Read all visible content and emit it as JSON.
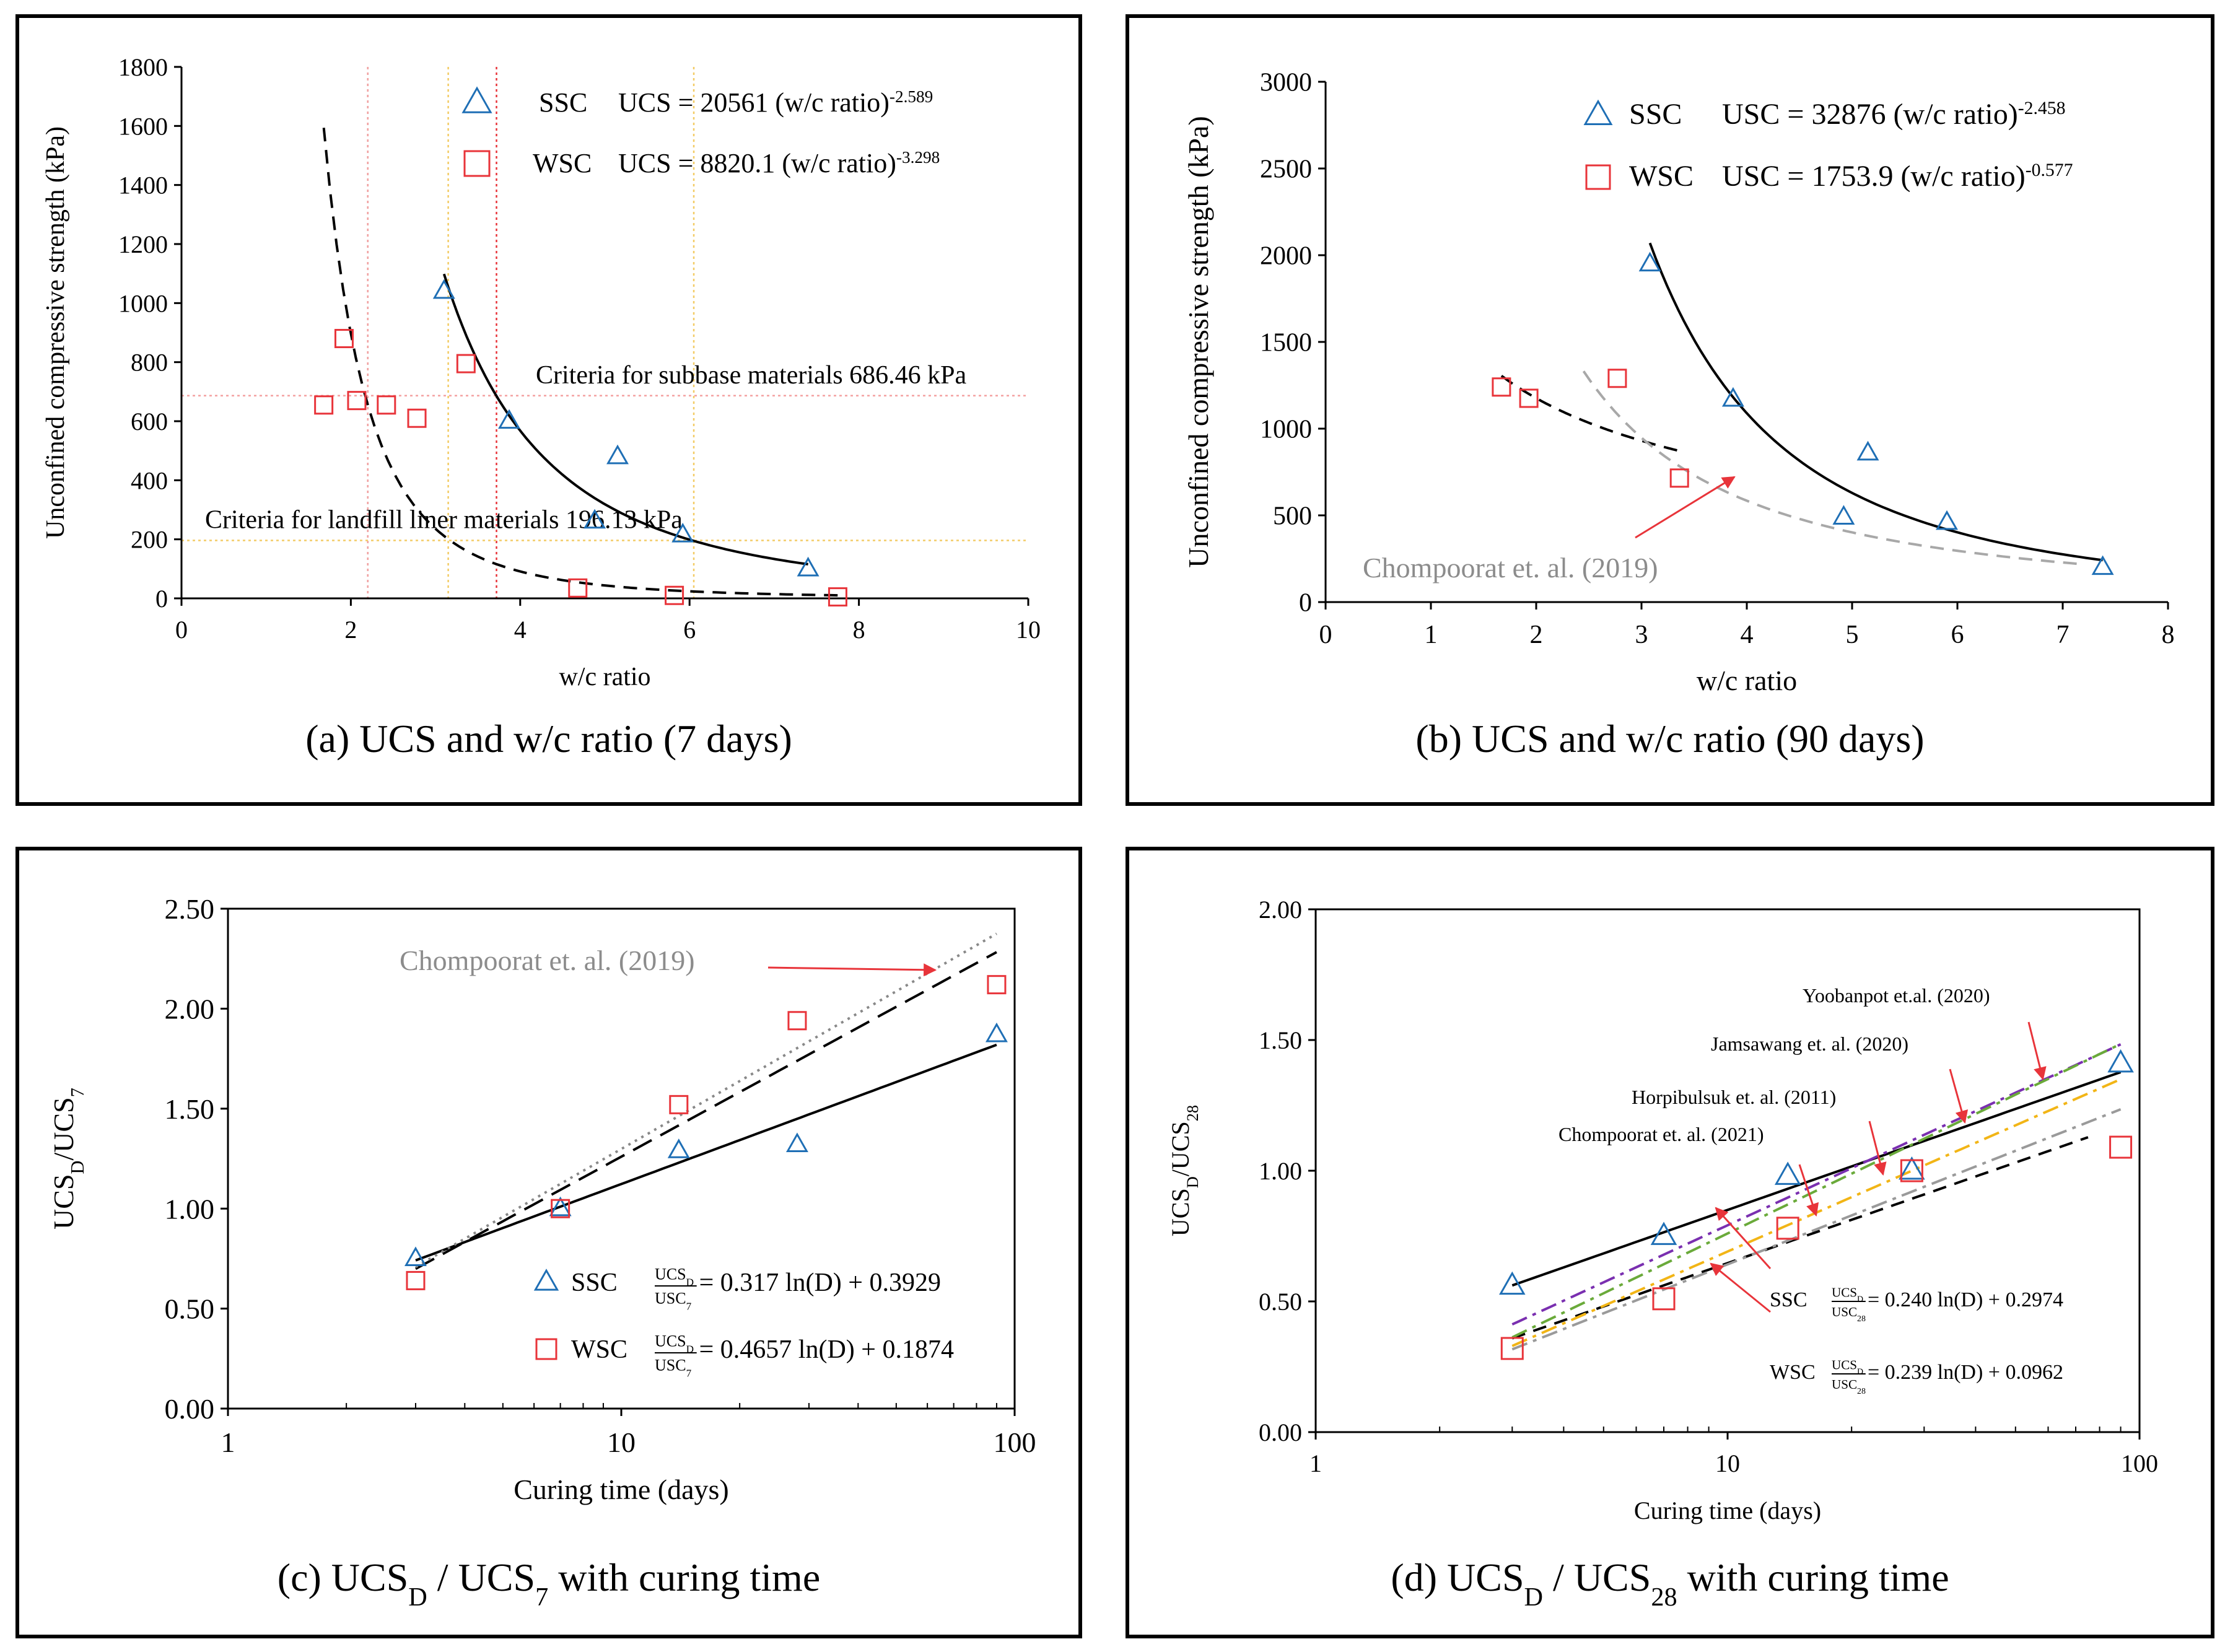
{
  "chart_data": [
    {
      "id": "a",
      "type": "scatter",
      "caption": {
        "pre": "(a) UCS and w/c ratio (7 days)"
      },
      "xlabel": "w/c ratio",
      "ylabel": "Unconfined compressive strength (kPa)",
      "xlim": [
        0,
        10
      ],
      "ylim": [
        0,
        1800
      ],
      "xticks": [
        0,
        2,
        4,
        6,
        8,
        10
      ],
      "yticks": [
        0,
        200,
        400,
        600,
        800,
        1000,
        1200,
        1400,
        1600,
        1800
      ],
      "series": [
        {
          "name": "SSC",
          "marker": "triangle",
          "color": "#1f6fb5",
          "x": [
            3.1,
            3.87,
            4.88,
            5.15,
            5.92,
            7.4
          ],
          "y": [
            1040,
            600,
            262,
            480,
            215,
            100
          ]
        },
        {
          "name": "WSC",
          "marker": "square",
          "color": "#e8343a",
          "x": [
            1.68,
            1.92,
            2.07,
            2.42,
            2.78,
            3.36,
            4.68,
            5.82,
            7.75
          ],
          "y": [
            655,
            880,
            670,
            655,
            610,
            795,
            35,
            10,
            5
          ]
        }
      ],
      "legend": [
        {
          "series": "SSC",
          "label": "SSC",
          "equation": "UCS = 20561 (w/c ratio)",
          "exponent": "-2.589"
        },
        {
          "series": "WSC",
          "label": "WSC",
          "equation": "UCS = 8820.1 (w/c ratio)",
          "exponent": "-3.298"
        }
      ],
      "fits": [
        {
          "style": "solid",
          "color": "#000000",
          "kind": "power",
          "a": 20561,
          "b": -2.589,
          "x0": 3.1,
          "x1": 7.4
        },
        {
          "style": "dashed",
          "color": "#000000",
          "kind": "power",
          "a": 8820.1,
          "b": -3.298,
          "x0": 1.68,
          "x1": 7.75
        }
      ],
      "hlines": [
        {
          "y": 686.46,
          "color": "#f4a0a0",
          "label": "Criteria for subbase materials 686.46 kPa"
        },
        {
          "y": 196.13,
          "color": "#f3cc66",
          "label": "Criteria for landfill liner materials 196.13 kPa"
        }
      ],
      "vlines": [
        {
          "x": 2.2,
          "color": "#f0a0a0"
        },
        {
          "x": 3.72,
          "color": "#e8343a"
        },
        {
          "x": 3.15,
          "color": "#f3cc66"
        },
        {
          "x": 6.05,
          "color": "#f3cc66"
        }
      ]
    },
    {
      "id": "b",
      "type": "scatter",
      "caption": {
        "pre": "(b) UCS and w/c ratio (90 days)"
      },
      "xlabel": "w/c ratio",
      "ylabel": "Unconfined compressive strength (kPa)",
      "xlim": [
        0,
        8
      ],
      "ylim": [
        0,
        3000
      ],
      "xticks": [
        0,
        1,
        2,
        3,
        4,
        5,
        6,
        7,
        8
      ],
      "yticks": [
        0,
        500,
        1000,
        1500,
        2000,
        2500,
        3000
      ],
      "series": [
        {
          "name": "SSC",
          "marker": "triangle",
          "color": "#1f6fb5",
          "x": [
            3.08,
            3.87,
            4.92,
            5.15,
            5.9,
            7.38
          ],
          "y": [
            1950,
            1170,
            490,
            860,
            460,
            200
          ]
        },
        {
          "name": "WSC",
          "marker": "square",
          "color": "#e8343a",
          "x": [
            1.67,
            1.93,
            2.77,
            3.36
          ],
          "y": [
            1240,
            1175,
            1290,
            715
          ]
        }
      ],
      "legend": [
        {
          "series": "SSC",
          "label": "SSC",
          "equation": "USC = 32876 (w/c ratio)",
          "exponent": "-2.458"
        },
        {
          "series": "WSC",
          "label": "WSC",
          "equation": "USC = 1753.9 (w/c ratio)",
          "exponent": "-0.577"
        }
      ],
      "fits": [
        {
          "style": "solid",
          "color": "#000000",
          "kind": "power",
          "a": 32876,
          "b": -2.458,
          "x0": 3.08,
          "x1": 7.38
        },
        {
          "style": "dashed",
          "color": "#000000",
          "kind": "power",
          "a": 1753.9,
          "b": -0.577,
          "x0": 1.67,
          "x1": 3.36
        },
        {
          "style": "dashed",
          "color": "#a8a8a8",
          "kind": "power",
          "a": 6000,
          "b": -1.68,
          "x0": 2.45,
          "x1": 7.2
        }
      ],
      "annotations": [
        {
          "text": "Chompoorat et. al. (2019)",
          "color": "#8c8c8c",
          "arrow_from": [
            3.72,
            670
          ],
          "arrow_to": [
            3.72,
            670
          ]
        }
      ]
    },
    {
      "id": "c",
      "type": "scatter",
      "caption": {
        "pre": "(c) UCS",
        "sub1": "D",
        "mid": " / UCS",
        "sub2": "7",
        "post": " with curing time"
      },
      "xlabel": "Curing time (days)",
      "ylabel": {
        "main": "UCS",
        "sub1": "D",
        "mid": "/UCS",
        "sub2": "7"
      },
      "xscale": "log",
      "xlim": [
        1,
        100
      ],
      "ylim": [
        0,
        2.5
      ],
      "xticks": [
        1,
        10,
        100
      ],
      "yticks": [
        0,
        0.5,
        1.0,
        1.5,
        2.0,
        2.5
      ],
      "ytick_labels": [
        "0.00",
        "0.50",
        "1.00",
        "1.50",
        "2.00",
        "2.50"
      ],
      "series": [
        {
          "name": "SSC",
          "marker": "triangle",
          "color": "#1f6fb5",
          "x": [
            3,
            7,
            14,
            28,
            90
          ],
          "y": [
            0.75,
            1.0,
            1.29,
            1.32,
            1.87
          ]
        },
        {
          "name": "WSC",
          "marker": "square",
          "color": "#e8343a",
          "x": [
            3,
            7,
            14,
            28,
            90
          ],
          "y": [
            0.64,
            1.0,
            1.52,
            1.94,
            2.12
          ]
        }
      ],
      "legend": [
        {
          "series": "SSC",
          "label": "SSC",
          "frac_num": "UCS",
          "frac_num_sub": "D",
          "frac_den": "USC",
          "frac_den_sub": "7",
          "equation": "= 0.317 ln(D) + 0.3929"
        },
        {
          "series": "WSC",
          "label": "WSC",
          "frac_num": "UCS",
          "frac_num_sub": "D",
          "frac_den": "USC",
          "frac_den_sub": "7",
          "equation": "= 0.4657 ln(D) + 0.1874"
        }
      ],
      "fits": [
        {
          "style": "solid",
          "color": "#000000",
          "kind": "ln",
          "a": 0.317,
          "b": 0.3929,
          "x0": 3,
          "x1": 90
        },
        {
          "style": "longdash",
          "color": "#000000",
          "kind": "ln",
          "a": 0.4657,
          "b": 0.1874,
          "x0": 3,
          "x1": 90
        },
        {
          "style": "dotted",
          "color": "#888888",
          "kind": "ln",
          "a": 0.49,
          "b": 0.17,
          "x0": 3,
          "x1": 90
        }
      ],
      "annotations": [
        {
          "text": "Chompoorat et. al. (2019)",
          "color": "#8c8c8c",
          "arrow_from": [
            45,
            2.22
          ],
          "arrow_to": [
            65,
            2.19
          ]
        }
      ]
    },
    {
      "id": "d",
      "type": "scatter",
      "caption": {
        "pre": "(d) UCS",
        "sub1": "D",
        "mid": " / UCS",
        "sub2": "28",
        "post": " with curing time"
      },
      "xlabel": "Curing time (days)",
      "ylabel": {
        "main": "UCS",
        "sub1": "D",
        "mid": "/UCS",
        "sub2": "28"
      },
      "xscale": "log",
      "xlim": [
        1,
        100
      ],
      "ylim": [
        0,
        2.0
      ],
      "xticks": [
        1,
        10,
        100
      ],
      "yticks": [
        0,
        0.5,
        1.0,
        1.5,
        2.0
      ],
      "ytick_labels": [
        "0.00",
        "0.50",
        "1.00",
        "1.50",
        "2.00"
      ],
      "series": [
        {
          "name": "SSC",
          "marker": "triangle",
          "color": "#1f6fb5",
          "x": [
            3,
            7,
            14,
            28,
            90
          ],
          "y": [
            0.56,
            0.75,
            0.98,
            1.0,
            1.41
          ]
        },
        {
          "name": "WSC",
          "marker": "square",
          "color": "#e8343a",
          "x": [
            3,
            7,
            14,
            28,
            90
          ],
          "y": [
            0.32,
            0.51,
            0.78,
            1.0,
            1.09
          ]
        }
      ],
      "legend": [
        {
          "series": "SSC",
          "label": "SSC",
          "frac_num": "UCS",
          "frac_num_sub": "D",
          "frac_den": "USC",
          "frac_den_sub": "28",
          "equation": "= 0.240 ln(D) + 0.2974"
        },
        {
          "series": "WSC",
          "label": "WSC",
          "frac_num": "UCS",
          "frac_num_sub": "D",
          "frac_den": "USC",
          "frac_den_sub": "28",
          "equation": "= 0.239 ln(D) + 0.0962"
        }
      ],
      "fits": [
        {
          "style": "solid",
          "color": "#000000",
          "kind": "ln",
          "a": 0.24,
          "b": 0.2974,
          "x0": 3,
          "x1": 90
        },
        {
          "style": "dashed",
          "color": "#000000",
          "kind": "ln",
          "a": 0.239,
          "b": 0.0962,
          "x0": 3,
          "x1": 75
        },
        {
          "style": "dashdot",
          "color": "#7a2fb0",
          "kind": "ln",
          "a": 0.315,
          "b": 0.066,
          "x0": 3,
          "x1": 90
        },
        {
          "style": "dashdot",
          "color": "#6aaa3a",
          "kind": "ln",
          "a": 0.33,
          "b": 0.0,
          "x0": 3,
          "x1": 90
        },
        {
          "style": "dashdot",
          "color": "#f2b516",
          "kind": "ln",
          "a": 0.3,
          "b": 0.0,
          "x0": 3,
          "x1": 90
        },
        {
          "style": "dashdot",
          "color": "#9a9a9a",
          "kind": "ln",
          "a": 0.27,
          "b": 0.02,
          "x0": 3,
          "x1": 90
        }
      ],
      "annotations": [
        {
          "text": "Yoobanpot et.al. (2020)",
          "color": "#000000",
          "arrow_from": [
            55,
            1.6
          ],
          "arrow_to": [
            58,
            1.36
          ]
        },
        {
          "text": "Jamsawang et. al. (2020)",
          "color": "#000000",
          "arrow_from": [
            40,
            1.36
          ],
          "arrow_to": [
            33,
            1.19
          ]
        },
        {
          "text": "Horpibulsuk et. al. (2011)",
          "color": "#000000",
          "arrow_from": [
            23,
            1.14
          ],
          "arrow_to": [
            25,
            1.0
          ]
        },
        {
          "text": "Chompoorat et. al. (2021)",
          "color": "#000000",
          "arrow_from": [
            14,
            0.95
          ],
          "arrow_to": [
            16,
            0.85
          ]
        },
        {
          "text": "",
          "color": "#000000",
          "arrow_from": [
            11,
            0.4
          ],
          "arrow_to": [
            10,
            0.84
          ]
        },
        {
          "text": "",
          "color": "#000000",
          "arrow_from": [
            11,
            0.4
          ],
          "arrow_to": [
            9,
            0.62
          ]
        }
      ]
    }
  ]
}
